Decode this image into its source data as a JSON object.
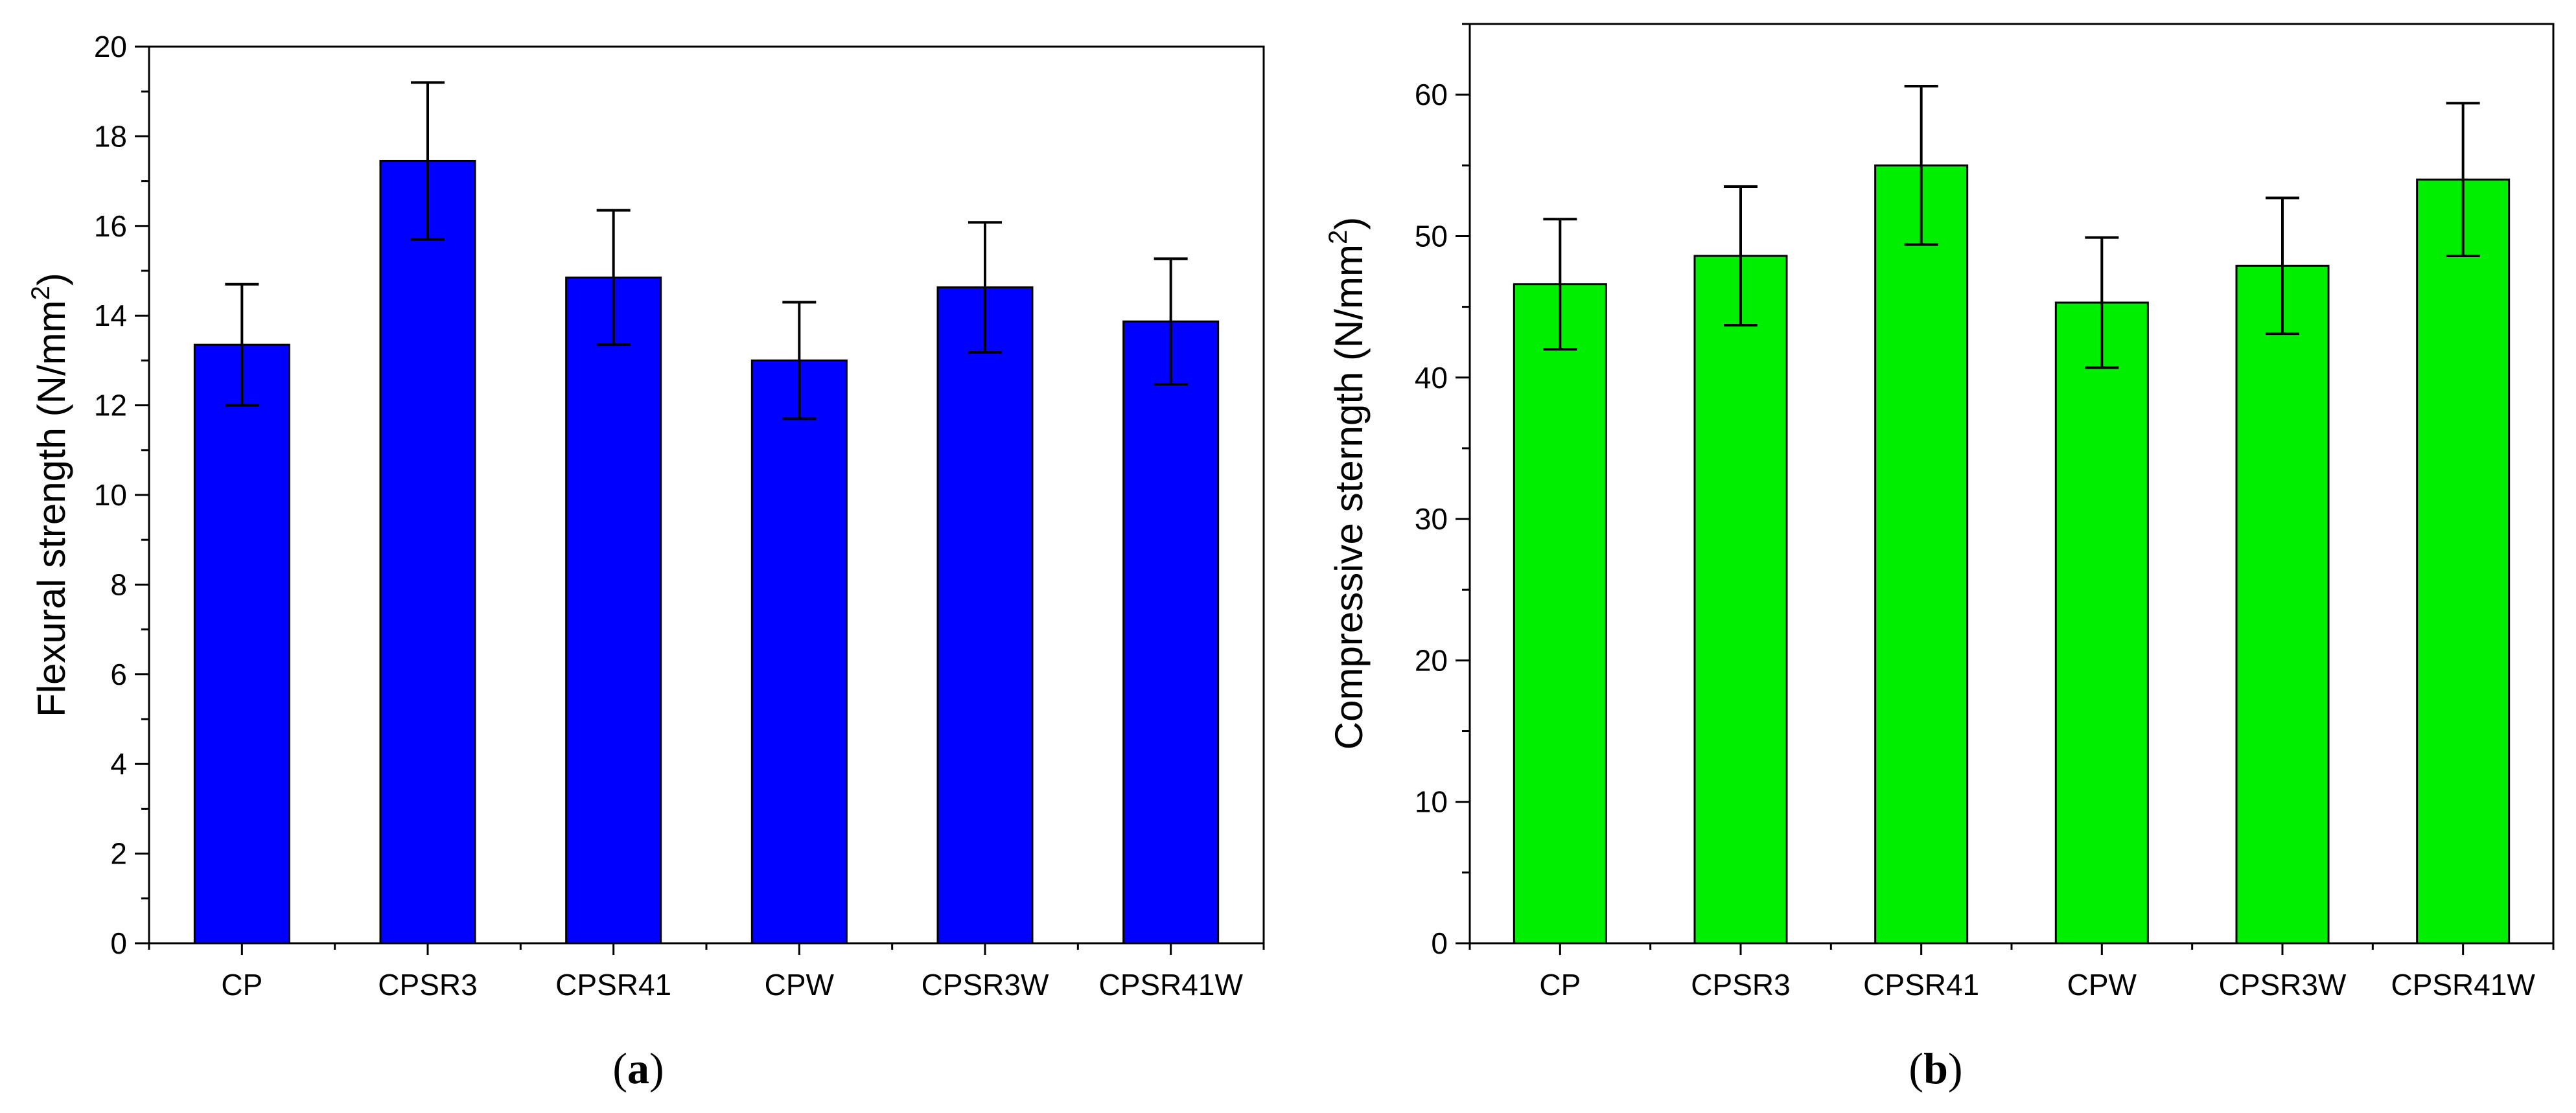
{
  "chart_data": [
    {
      "type": "bar",
      "panel_label": "a",
      "categories": [
        "CP",
        "CPSR3",
        "CPSR41",
        "CPW",
        "CPSR3W",
        "CPSR41W"
      ],
      "values": [
        13.35,
        17.45,
        14.85,
        13.0,
        14.63,
        13.87
      ],
      "errors": [
        1.35,
        1.75,
        1.5,
        1.3,
        1.45,
        1.4
      ],
      "ylabel_main": "Flexural strength (N/mm",
      "ylabel_sup": "2",
      "ylabel_end": ")",
      "ylim": [
        0,
        20
      ],
      "yticks": [
        0,
        2,
        4,
        6,
        8,
        10,
        12,
        14,
        16,
        18,
        20
      ],
      "minor_ytick_step": 1,
      "grid": false,
      "bar_color": "#0000ff"
    },
    {
      "type": "bar",
      "panel_label": "b",
      "categories": [
        "CP",
        "CPSR3",
        "CPSR41",
        "CPW",
        "CPSR3W",
        "CPSR41W"
      ],
      "values": [
        46.6,
        48.6,
        55.0,
        45.3,
        47.9,
        54.0
      ],
      "errors": [
        4.6,
        4.9,
        5.6,
        4.6,
        4.8,
        5.4
      ],
      "ylabel_main": "Compressive sterngth (N/mm",
      "ylabel_sup": "2",
      "ylabel_end": ")",
      "ylim": [
        0,
        65
      ],
      "yticks": [
        0,
        10,
        20,
        30,
        40,
        50,
        60
      ],
      "minor_ytick_step": 5,
      "grid": false,
      "bar_color": "#00ee00"
    }
  ]
}
